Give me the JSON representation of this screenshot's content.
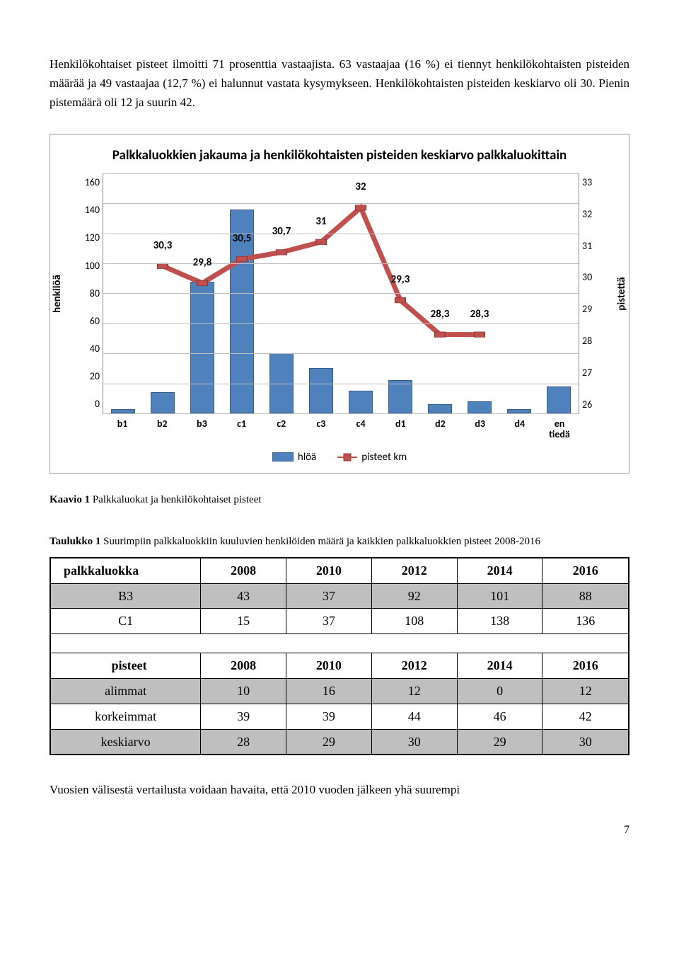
{
  "intro": "Henkilökohtaiset pisteet ilmoitti 71 prosenttia vastaajista. 63 vastaajaa (16 %) ei tiennyt henkilökohtaisten pisteiden määrää ja 49 vastaajaa (12,7 %) ei halunnut vastata kysymykseen. Henkilökohtaisten pisteiden keskiarvo oli 30. Pienin pistemäärä oli 12 ja suurin 42.",
  "chart": {
    "title": "Palkkaluokkien jakauma ja henkilökohtaisten pisteiden keskiarvo palkkaluokittain",
    "y_left": {
      "label": "henkilöä",
      "min": 0,
      "max": 160,
      "step": 20
    },
    "y_right": {
      "label": "pistettä",
      "min": 26,
      "max": 33,
      "step": 1
    },
    "categories": [
      "b1",
      "b2",
      "b3",
      "c1",
      "c2",
      "c3",
      "c4",
      "d1",
      "d2",
      "d3",
      "d4",
      "en tiedä"
    ],
    "bars": [
      3,
      14,
      88,
      136,
      40,
      30,
      15,
      22,
      6,
      8,
      3,
      18
    ],
    "bar_color": "#4f81bd",
    "bar_border": "#385d8a",
    "line_values": [
      null,
      30.3,
      29.8,
      30.5,
      30.7,
      31,
      32,
      29.3,
      28.3,
      28.3,
      null,
      null
    ],
    "line_labels": [
      "",
      "30,3",
      "29,8",
      "30,5",
      "30,7",
      "31",
      "32",
      "29,3",
      "28,3",
      "28,3",
      "",
      ""
    ],
    "line_color": "#c0504d",
    "legend": {
      "bar": "hlöä",
      "line": "pisteet km"
    }
  },
  "caption": {
    "prefix": "Kaavio 1 ",
    "text": "Palkkaluokat ja henkilökohtaiset pisteet"
  },
  "table_title": {
    "prefix": "Taulukko 1 ",
    "text": "Suurimpiin palkkaluokkiin kuuluvien henkilöiden määrä ja kaikkien palkkaluokkien pisteet 2008-2016"
  },
  "table": {
    "head1": [
      "palkkaluokka",
      "2008",
      "2010",
      "2012",
      "2014",
      "2016"
    ],
    "rows1": [
      [
        "B3",
        "43",
        "37",
        "92",
        "101",
        "88"
      ],
      [
        "C1",
        "15",
        "37",
        "108",
        "138",
        "136"
      ]
    ],
    "head2": [
      "pisteet",
      "2008",
      "2010",
      "2012",
      "2014",
      "2016"
    ],
    "rows2": [
      [
        "alimmat",
        "10",
        "16",
        "12",
        "0",
        "12"
      ],
      [
        "korkeimmat",
        "39",
        "39",
        "44",
        "46",
        "42"
      ],
      [
        "keskiarvo",
        "28",
        "29",
        "30",
        "29",
        "30"
      ]
    ]
  },
  "outro": "Vuosien välisestä vertailusta voidaan havaita, että 2010 vuoden jälkeen yhä suurempi",
  "page_number": "7"
}
